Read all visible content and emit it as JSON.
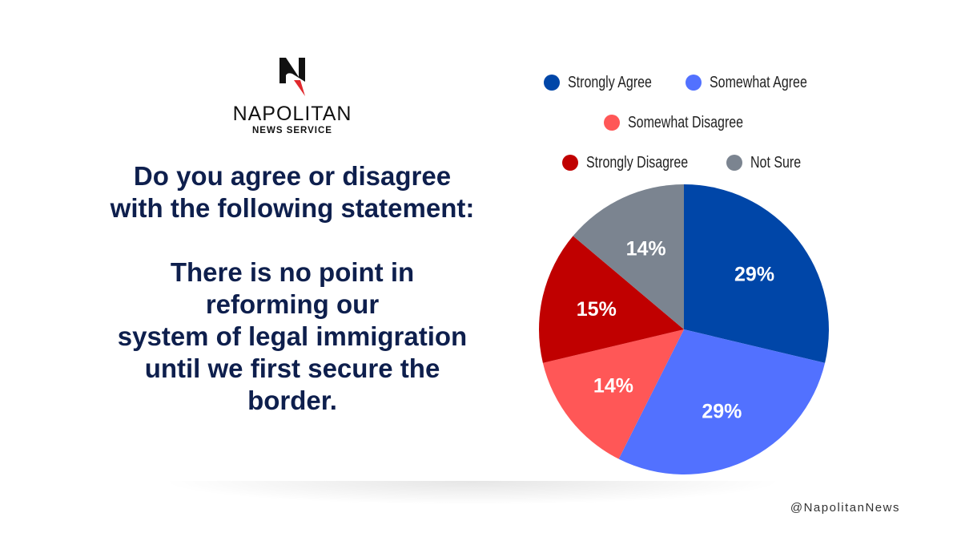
{
  "logo": {
    "brand": "NAPOLITAN",
    "sub": "NEWS SERVICE"
  },
  "question": {
    "lines1": [
      "Do you agree or disagree",
      "with the following statement:"
    ],
    "lines2": [
      "There is no point in",
      "reforming our",
      "system of legal immigration",
      "until we first secure the",
      "border."
    ]
  },
  "handle": "@NapolitanNews",
  "chart_data": {
    "type": "pie",
    "title": "",
    "categories": [
      "Strongly Agree",
      "Somewhat Agree",
      "Somewhat Disagree",
      "Strongly Disagree",
      "Not Sure"
    ],
    "values": [
      29,
      29,
      14,
      15,
      14
    ],
    "labels": [
      "29%",
      "29%",
      "14%",
      "15%",
      "14%"
    ],
    "colors": [
      "#0046a8",
      "#5271ff",
      "#ff5757",
      "#c00000",
      "#7b8490"
    ],
    "legend_position": "top"
  }
}
